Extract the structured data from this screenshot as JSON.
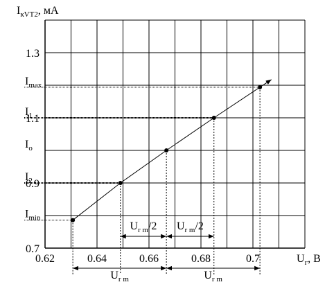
{
  "chart_data": {
    "type": "line",
    "y_label": {
      "main": "I",
      "sub": "кVT2",
      "rest": ", мА"
    },
    "x_label": {
      "main": "U",
      "sub": "г",
      "rest": ", В"
    },
    "x": [
      0.6307,
      0.649,
      0.6667,
      0.685,
      0.7027
    ],
    "series": [
      {
        "color": "#000000",
        "values": [
          0.786,
          0.9,
          1.0,
          1.1,
          1.194
        ]
      }
    ],
    "level_labels": [
      {
        "main": "I",
        "sub": "min"
      },
      {
        "main": "I",
        "sub": "2"
      },
      {
        "main": "I",
        "sub": "o"
      },
      {
        "main": "I",
        "sub": "1"
      },
      {
        "main": "I",
        "sub": "max"
      }
    ],
    "half_span_label": {
      "main": "U",
      "sub": "r m",
      "rest": "/2"
    },
    "span_label": {
      "main": "U",
      "sub": "r m"
    },
    "xlim": [
      0.62,
      0.72
    ],
    "ylim": [
      0.7,
      1.4
    ],
    "xticks": [
      0.62,
      0.64,
      0.66,
      0.68,
      0.7
    ],
    "minor_xticks": [
      0.63,
      0.65,
      0.67,
      0.69,
      0.71,
      0.72
    ],
    "yticks": [
      0.7,
      0.9,
      1.1,
      1.3
    ],
    "minor_yticks": [
      0.8,
      1.0,
      1.2,
      1.4
    ],
    "grid": true
  }
}
